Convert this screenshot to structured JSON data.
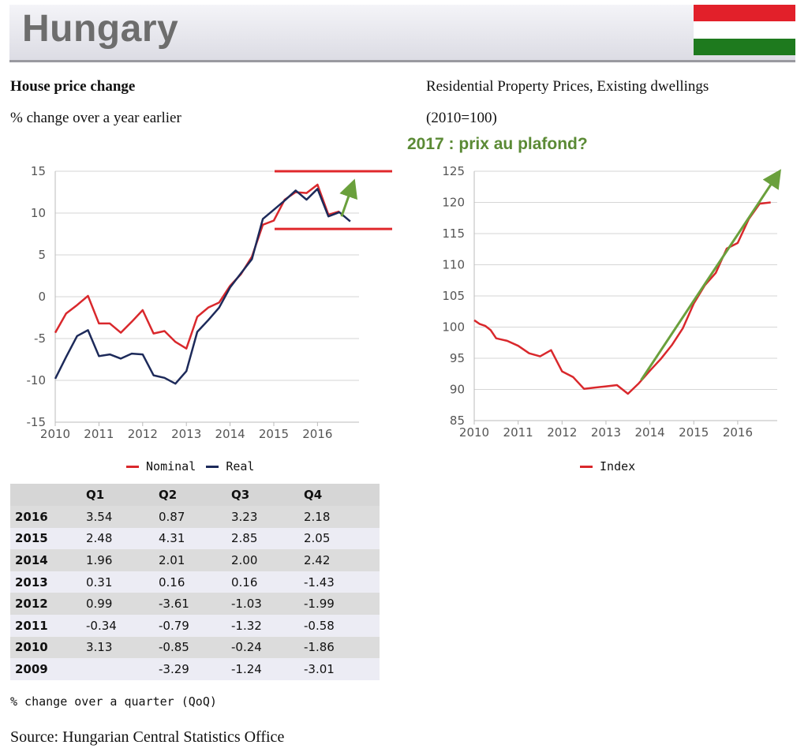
{
  "header": {
    "title": "Hungary",
    "flag_colors": [
      "#e2202a",
      "#ffffff",
      "#1e7a1e"
    ]
  },
  "left_chart": {
    "title": "House price change",
    "subtitle": "% change over a year earlier",
    "legend": [
      "Nominal",
      "Real"
    ]
  },
  "right_chart": {
    "title": "Residential Property Prices, Existing dwellings",
    "subtitle": "(2010=100)",
    "annotation": "2017 : prix au plafond?",
    "legend": [
      "Index"
    ]
  },
  "colors": {
    "nominal": "#d9282c",
    "real": "#1d2a5a",
    "index": "#d9282c",
    "arrow": "#6aa03c",
    "grid": "#d6d6d6"
  },
  "chart_data": [
    {
      "type": "line",
      "title": "House price change",
      "subtitle": "% change over a year earlier",
      "x_ticks": [
        "2010",
        "2011",
        "2012",
        "2013",
        "2014",
        "2015",
        "2016"
      ],
      "y_ticks": [
        "15",
        "10",
        "5",
        "0",
        "-5",
        "-10",
        "-15"
      ],
      "ylim": [
        -15,
        15
      ],
      "xlim": [
        2010,
        2016.95
      ],
      "legend_position": "bottom",
      "series": [
        {
          "name": "Nominal",
          "color": "#d9282c",
          "x": [
            2010.0,
            2010.25,
            2010.5,
            2010.75,
            2011.0,
            2011.25,
            2011.5,
            2011.75,
            2012.0,
            2012.25,
            2012.5,
            2012.75,
            2013.0,
            2013.25,
            2013.5,
            2013.75,
            2014.0,
            2014.25,
            2014.5,
            2014.75,
            2015.0,
            2015.25,
            2015.5,
            2015.75,
            2016.0,
            2016.25,
            2016.5
          ],
          "values": [
            -4.3,
            -2.0,
            -1.0,
            0.1,
            -3.2,
            -3.2,
            -4.3,
            -3.0,
            -1.6,
            -4.4,
            -4.1,
            -5.4,
            -6.2,
            -2.4,
            -1.3,
            -0.7,
            1.3,
            2.7,
            4.8,
            8.6,
            9.1,
            11.6,
            12.5,
            12.4,
            13.4,
            9.8,
            10.2
          ]
        },
        {
          "name": "Real",
          "color": "#1d2a5a",
          "x": [
            2010.0,
            2010.25,
            2010.5,
            2010.75,
            2011.0,
            2011.25,
            2011.5,
            2011.75,
            2012.0,
            2012.25,
            2012.5,
            2012.75,
            2013.0,
            2013.25,
            2013.5,
            2013.75,
            2014.0,
            2014.25,
            2014.5,
            2014.75,
            2015.0,
            2015.25,
            2015.5,
            2015.75,
            2016.0,
            2016.25,
            2016.5,
            2016.75
          ],
          "values": [
            -9.8,
            -7.2,
            -4.7,
            -4.0,
            -7.1,
            -6.9,
            -7.4,
            -6.8,
            -6.9,
            -9.4,
            -9.7,
            -10.4,
            -8.9,
            -4.2,
            -2.8,
            -1.3,
            1.1,
            2.8,
            4.5,
            9.3,
            10.4,
            11.5,
            12.7,
            11.6,
            12.9,
            9.6,
            10.1,
            9.0
          ]
        }
      ],
      "annotations": [
        {
          "type": "hline",
          "value": 15.0,
          "color": "#e0282c"
        },
        {
          "type": "hline",
          "value": 8.1,
          "color": "#e0282c"
        },
        {
          "type": "arrow",
          "from": [
            2016.55,
            9.6
          ],
          "to": [
            2016.8,
            13.3
          ],
          "color": "#6aa03c"
        }
      ]
    },
    {
      "type": "line",
      "title": "Residential Property Prices, Existing dwellings",
      "subtitle": "(2010=100)",
      "x_ticks": [
        "2010",
        "2011",
        "2012",
        "2013",
        "2014",
        "2015",
        "2016"
      ],
      "y_ticks": [
        "125",
        "120",
        "115",
        "110",
        "105",
        "100",
        "95",
        "90",
        "85"
      ],
      "ylim": [
        85,
        125
      ],
      "xlim": [
        2010,
        2016.9
      ],
      "legend_position": "bottom",
      "series": [
        {
          "name": "Index",
          "color": "#d9282c",
          "x": [
            2010.0,
            2010.125,
            2010.25,
            2010.375,
            2010.5,
            2010.625,
            2010.75,
            2011.0,
            2011.25,
            2011.5,
            2011.75,
            2012.0,
            2012.25,
            2012.5,
            2012.75,
            2013.0,
            2013.25,
            2013.5,
            2013.75,
            2014.0,
            2014.25,
            2014.5,
            2014.75,
            2015.0,
            2015.25,
            2015.5,
            2015.75,
            2016.0,
            2016.25,
            2016.5,
            2016.75
          ],
          "values": [
            101.1,
            100.5,
            100.2,
            99.5,
            98.2,
            98.0,
            97.8,
            97.0,
            95.8,
            95.3,
            96.3,
            92.9,
            92.0,
            90.1,
            90.3,
            90.5,
            90.7,
            89.3,
            91.0,
            93.0,
            94.9,
            97.1,
            99.8,
            103.8,
            106.7,
            108.7,
            112.6,
            113.5,
            117.3,
            119.8,
            120.0
          ]
        }
      ],
      "annotations": [
        {
          "type": "arrow",
          "from": [
            2013.8,
            91.5
          ],
          "to": [
            2016.9,
            124.4
          ],
          "color": "#6aa03c"
        }
      ]
    },
    {
      "type": "table",
      "columns": [
        "",
        "Q1",
        "Q2",
        "Q3",
        "Q4"
      ],
      "rows": [
        [
          "2016",
          "3.54",
          "0.87",
          "3.23",
          "2.18"
        ],
        [
          "2015",
          "2.48",
          "4.31",
          "2.85",
          "2.05"
        ],
        [
          "2014",
          "1.96",
          "2.01",
          "2.00",
          "2.42"
        ],
        [
          "2013",
          "0.31",
          "0.16",
          "0.16",
          "-1.43"
        ],
        [
          "2012",
          "0.99",
          "-3.61",
          "-1.03",
          "-1.99"
        ],
        [
          "2011",
          "-0.34",
          "-0.79",
          "-1.32",
          "-0.58"
        ],
        [
          "2010",
          "3.13",
          "-0.85",
          "-0.24",
          "-1.86"
        ],
        [
          "2009",
          "",
          "-3.29",
          "-1.24",
          "-3.01"
        ]
      ],
      "caption": "% change over a quarter (QoQ)"
    }
  ],
  "footer": {
    "source": "Source: Hungarian Central Statistics Office"
  }
}
